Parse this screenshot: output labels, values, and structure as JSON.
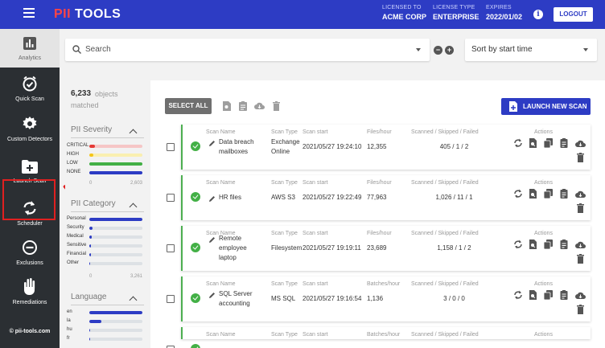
{
  "topbar": {
    "brand_prefix": "PII",
    "brand_rest": " TOOLS",
    "licensed_to_label": "LICENSED TO",
    "licensed_to_value": "ACME CORP",
    "license_type_label": "LICENSE TYPE",
    "license_type_value": "ENTERPRISE",
    "expires_label": "EXPIRES",
    "expires_value": "2022/01/02",
    "info_icon": "i",
    "logout_label": "LOGOUT"
  },
  "sidebar": {
    "analytics": "Analytics",
    "quick_scan": "Quick Scan",
    "custom_detectors": "Custom Detectors",
    "launch_scan": "Launch Scan",
    "scheduler": "Scheduler",
    "exclusions": "Exclusions",
    "remediations": "Remediations",
    "footer": "© pii-tools.com"
  },
  "search": {
    "placeholder": "Search",
    "sort_value": "Sort by start time"
  },
  "filters": {
    "count": "6,233",
    "count_label_1": "objects",
    "count_label_2": "matched",
    "severity": {
      "title": "PII Severity",
      "rows": [
        {
          "name": "CRITICAL",
          "value": 0.1,
          "color": "#e53935",
          "bg": "#f6c6c6"
        },
        {
          "name": "HIGH",
          "value": 0.08,
          "color": "#f5c518",
          "bg": "#faefb0"
        },
        {
          "name": "LOW",
          "value": 1.0,
          "color": "#43b046",
          "bg": "#43b046"
        },
        {
          "name": "NONE",
          "value": 1.0,
          "color": "#2d3cc4",
          "bg": "#2d3cc4"
        }
      ],
      "axis_min": "0",
      "axis_max": "2,603"
    },
    "category": {
      "title": "PII Category",
      "rows": [
        {
          "name": "Personal",
          "value": 1.0
        },
        {
          "name": "Security",
          "value": 0.06
        },
        {
          "name": "Medical",
          "value": 0.04
        },
        {
          "name": "Sensitive",
          "value": 0.03
        },
        {
          "name": "Financial",
          "value": 0.03
        },
        {
          "name": "Other",
          "value": 0.02
        }
      ],
      "axis_min": "0",
      "axis_max": "3,261"
    },
    "language": {
      "title": "Language",
      "rows": [
        {
          "name": "en",
          "value": 1.0
        },
        {
          "name": "la",
          "value": 0.23
        },
        {
          "name": "hu",
          "value": 0.02
        },
        {
          "name": "fr",
          "value": 0.02
        }
      ]
    }
  },
  "main": {
    "select_all": "SELECT ALL",
    "launch_new_scan": "LAUNCH NEW SCAN",
    "col_scan_name": "Scan Name",
    "col_scan_type": "Scan Type",
    "col_scan_start": "Scan start",
    "col_scanned": "Scanned / Skipped / Failed",
    "col_actions": "Actions",
    "rows": [
      {
        "name_1": "Data breach",
        "name_2": "mailboxes",
        "name_3": "",
        "type_1": "Exchange",
        "type_2": "Online",
        "start": "2021/05/27 19:24:10",
        "rate_label": "Files/hour",
        "rate": "12,355",
        "counts": "405 / 1 / 2"
      },
      {
        "name_1": "HR files",
        "name_2": "",
        "name_3": "",
        "type_1": "AWS S3",
        "type_2": "",
        "start": "2021/05/27 19:22:49",
        "rate_label": "Files/hour",
        "rate": "77,963",
        "counts": "1,026 / 11 / 1"
      },
      {
        "name_1": "Remote",
        "name_2": "employee",
        "name_3": "laptop",
        "type_1": "Filesystem",
        "type_2": "",
        "start": "2021/05/27 19:19:11",
        "rate_label": "Files/hour",
        "rate": "23,689",
        "counts": "1,158 / 1 / 2"
      },
      {
        "name_1": "SQL Server",
        "name_2": "accounting",
        "name_3": "",
        "type_1": "MS SQL",
        "type_2": "",
        "start": "2021/05/27 19:16:54",
        "rate_label": "Batches/hour",
        "rate": "1,136",
        "counts": "3 / 0 / 0"
      },
      {
        "name_1": "",
        "name_2": "",
        "name_3": "",
        "type_1": "",
        "type_2": "",
        "start": "",
        "rate_label": "Batches/hour",
        "rate": "",
        "counts": ""
      }
    ]
  },
  "colors": {
    "brand_blue": "#2d3cc4",
    "sidebar_dark": "#2b2f33",
    "success_green": "#43b046",
    "annotation_red": "#e02020"
  }
}
